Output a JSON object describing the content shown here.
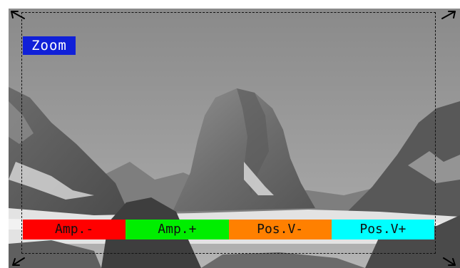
{
  "overlay": {
    "zoom_label": "Zoom",
    "zoom_color": "#1020d8"
  },
  "controls": [
    {
      "label": "Amp.-",
      "color": "#ff0000"
    },
    {
      "label": "Amp.+",
      "color": "#00ee00"
    },
    {
      "label": "Pos.V-",
      "color": "#ff8000"
    },
    {
      "label": "Pos.V+",
      "color": "#00ffff"
    }
  ],
  "icons": {
    "corners": [
      "arrow-up-left-icon",
      "arrow-up-right-icon",
      "arrow-down-left-icon",
      "arrow-down-right-icon"
    ]
  }
}
